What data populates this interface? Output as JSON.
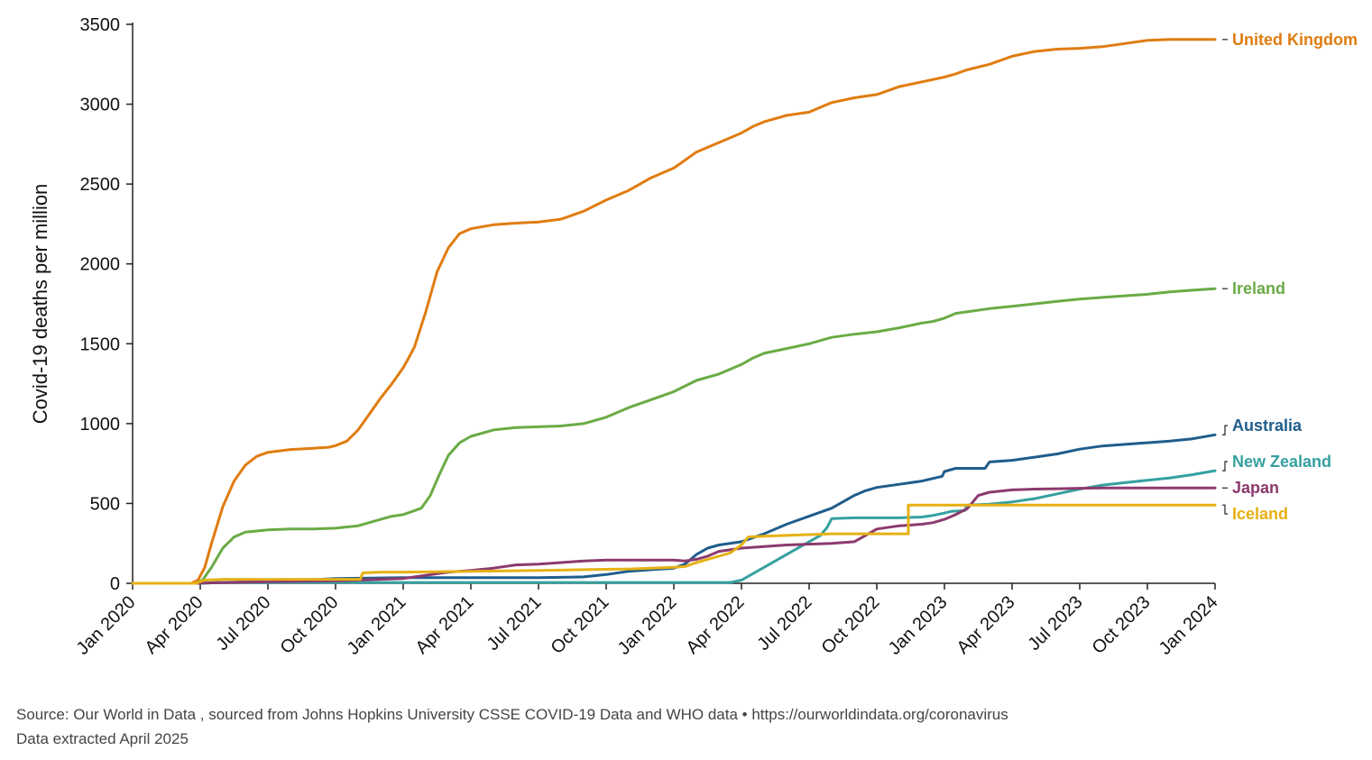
{
  "chart_data": {
    "type": "line",
    "title": "",
    "xlabel": "",
    "ylabel": "Covid-19 deaths per million",
    "ylim": [
      0,
      3500
    ],
    "yticks": [
      0,
      500,
      1000,
      1500,
      2000,
      2500,
      3000,
      3500
    ],
    "xlim": [
      0,
      48
    ],
    "x_unit": "months since Jan 2020",
    "xtick_labels": [
      "Jan 2020",
      "Apr 2020",
      "Jul 2020",
      "Oct 2020",
      "Jan 2021",
      "Apr 2021",
      "Jul 2021",
      "Oct 2021",
      "Jan 2022",
      "Apr 2022",
      "Jul 2022",
      "Oct 2022",
      "Jan 2023",
      "Apr 2023",
      "Jul 2023",
      "Oct 2023",
      "Jan 2024"
    ],
    "xtick_positions": [
      0,
      3,
      6,
      9,
      12,
      15,
      18,
      21,
      24,
      27,
      30,
      33,
      36,
      39,
      42,
      45,
      48
    ],
    "series": [
      {
        "name": "United Kingdom",
        "color": "#e07c10",
        "x": [
          0,
          2.6,
          2.9,
          3.2,
          3.5,
          4,
          4.5,
          5,
          5.5,
          6,
          7,
          8,
          8.7,
          9,
          9.5,
          10,
          10.5,
          11,
          11.5,
          12,
          12.2,
          12.5,
          13,
          13.5,
          14,
          14.5,
          15,
          16,
          17,
          18,
          19,
          20,
          21,
          22,
          23,
          24,
          24.5,
          25,
          26,
          27,
          27.5,
          28,
          29,
          30,
          31,
          32,
          33,
          34,
          35,
          36,
          36.5,
          37,
          38,
          39,
          40,
          41,
          42,
          43,
          44,
          45,
          46,
          47,
          48
        ],
        "y": [
          0,
          0,
          20,
          100,
          250,
          480,
          640,
          740,
          795,
          820,
          838,
          845,
          852,
          862,
          890,
          960,
          1060,
          1160,
          1250,
          1350,
          1400,
          1480,
          1700,
          1950,
          2100,
          2190,
          2220,
          2245,
          2255,
          2262,
          2280,
          2330,
          2400,
          2460,
          2540,
          2600,
          2650,
          2700,
          2760,
          2820,
          2860,
          2890,
          2930,
          2950,
          3010,
          3040,
          3060,
          3110,
          3140,
          3170,
          3190,
          3215,
          3250,
          3300,
          3330,
          3345,
          3350,
          3360,
          3380,
          3400,
          3405,
          3405,
          3405
        ]
      },
      {
        "name": "Ireland",
        "color": "#6aab45",
        "x": [
          0,
          2.8,
          3.1,
          3.5,
          4,
          4.5,
          5,
          6,
          7,
          8,
          9,
          10,
          11,
          11.5,
          12,
          12.4,
          12.8,
          13.2,
          13.6,
          14,
          14.5,
          15,
          16,
          17,
          18,
          19,
          20,
          21,
          22,
          23,
          24,
          25,
          26,
          27,
          27.5,
          28,
          29,
          30,
          31,
          32,
          33,
          34,
          35,
          35.5,
          36,
          36.5,
          37,
          38,
          39,
          40,
          41,
          42,
          43,
          44,
          45,
          46,
          47,
          48
        ],
        "y": [
          0,
          0,
          20,
          100,
          220,
          290,
          320,
          335,
          340,
          340,
          345,
          360,
          400,
          420,
          430,
          450,
          470,
          550,
          680,
          800,
          880,
          920,
          960,
          975,
          980,
          985,
          1000,
          1040,
          1100,
          1150,
          1200,
          1270,
          1310,
          1370,
          1410,
          1440,
          1470,
          1500,
          1540,
          1560,
          1575,
          1600,
          1630,
          1640,
          1660,
          1690,
          1700,
          1720,
          1735,
          1750,
          1765,
          1780,
          1790,
          1800,
          1810,
          1825,
          1835,
          1845
        ]
      },
      {
        "name": "Australia",
        "color": "#1f5d8c",
        "x": [
          0,
          2.8,
          4,
          6,
          9,
          12,
          15,
          18,
          20,
          21,
          22,
          23,
          24,
          24.5,
          25,
          25.5,
          26,
          27,
          28,
          29,
          30,
          31,
          32,
          32.5,
          33,
          34,
          35,
          35.9,
          36,
          36.5,
          36.9,
          37,
          37.8,
          38,
          39,
          40,
          41,
          42,
          43,
          44,
          45,
          46,
          47,
          48
        ],
        "y": [
          0,
          0,
          5,
          10,
          30,
          35,
          35,
          35,
          40,
          55,
          75,
          85,
          95,
          120,
          180,
          220,
          240,
          260,
          310,
          370,
          420,
          470,
          550,
          580,
          600,
          620,
          640,
          670,
          700,
          720,
          720,
          720,
          720,
          760,
          770,
          790,
          810,
          840,
          860,
          870,
          880,
          890,
          905,
          930
        ]
      },
      {
        "name": "New Zealand",
        "color": "#36a0a0",
        "x": [
          0,
          2.8,
          4,
          6,
          12,
          18,
          24,
          25,
          26,
          26.5,
          27,
          27.5,
          28,
          29,
          30,
          30.5,
          30.8,
          31,
          32,
          33,
          34,
          35,
          35.5,
          36,
          36.3,
          36.9,
          37,
          38,
          39,
          40,
          41,
          42,
          43,
          44,
          45,
          46,
          47,
          48
        ],
        "y": [
          0,
          0,
          5,
          5,
          5,
          5,
          5,
          5,
          5,
          5,
          20,
          60,
          100,
          180,
          260,
          300,
          350,
          405,
          410,
          410,
          410,
          415,
          425,
          440,
          450,
          455,
          490,
          495,
          510,
          530,
          560,
          590,
          615,
          630,
          645,
          660,
          680,
          705
        ]
      },
      {
        "name": "Japan",
        "color": "#8b3a6e",
        "x": [
          0,
          2.8,
          4,
          6,
          9,
          12,
          13,
          14,
          15,
          16,
          17,
          18,
          19,
          20,
          21,
          22,
          23,
          24,
          24.5,
          25,
          25.5,
          26,
          27,
          28,
          29,
          30,
          31,
          32,
          32.5,
          33,
          34,
          35,
          35.5,
          36,
          36.5,
          36.9,
          37,
          37.5,
          38,
          39,
          40,
          41,
          42,
          43,
          44,
          45,
          46,
          47,
          48
        ],
        "y": [
          0,
          0,
          5,
          10,
          15,
          30,
          50,
          70,
          80,
          95,
          115,
          120,
          130,
          140,
          145,
          145,
          145,
          145,
          140,
          150,
          170,
          200,
          220,
          230,
          240,
          245,
          250,
          260,
          300,
          340,
          360,
          370,
          380,
          400,
          430,
          460,
          465,
          550,
          570,
          585,
          590,
          592,
          595,
          597,
          597,
          597,
          597,
          597,
          597
        ]
      },
      {
        "name": "Iceland",
        "color": "#e6b114",
        "x": [
          0,
          2.8,
          3.2,
          4,
          6,
          9,
          10.1,
          10.2,
          11,
          12,
          15,
          18,
          20,
          22,
          23,
          24,
          24.5,
          25,
          26,
          26.5,
          27,
          27.3,
          28,
          29,
          30,
          31,
          32,
          33,
          34,
          34.4,
          34.4,
          35,
          36,
          37,
          38,
          39,
          40,
          41,
          42,
          43,
          44,
          45,
          46,
          47,
          48
        ],
        "y": [
          0,
          0,
          20,
          25,
          25,
          25,
          25,
          65,
          70,
          70,
          75,
          80,
          85,
          90,
          95,
          100,
          105,
          130,
          170,
          190,
          240,
          290,
          295,
          300,
          305,
          310,
          310,
          310,
          310,
          310,
          490,
          490,
          490,
          490,
          490,
          490,
          490,
          490,
          490,
          490,
          490,
          490,
          490,
          490,
          490
        ]
      }
    ]
  },
  "footer": {
    "source": "Source: Our World in Data , sourced from Johns Hopkins University CSSE COVID-19 Data and WHO data • https://ourworldindata.org/coronavirus",
    "extracted": "Data extracted April 2025"
  }
}
